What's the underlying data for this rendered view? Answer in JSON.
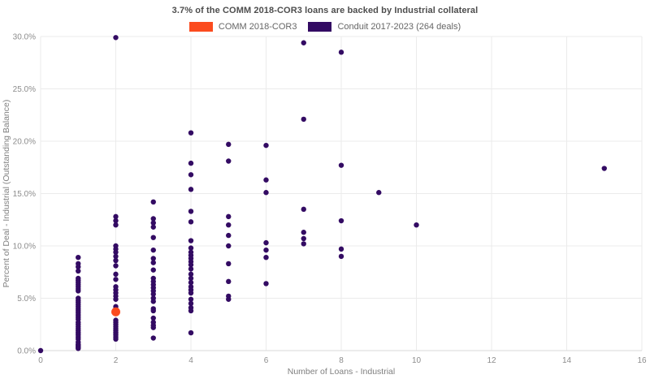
{
  "header": {
    "title": "3.7% of the COMM 2018-COR3 loans are backed by Industrial collateral"
  },
  "legend": {
    "items": [
      {
        "label": "COMM 2018-COR3",
        "color": "#fb4b1e"
      },
      {
        "label": "Conduit 2017-2023 (264 deals)",
        "color": "#330b63"
      }
    ]
  },
  "chart_data": {
    "type": "scatter",
    "title": "3.7% of the COMM 2018-COR3 loans are backed by Industrial collateral",
    "xlabel": "Number of Loans - Industrial",
    "ylabel": "Percent of Deal - Industrial (Outstanding Balance)",
    "xlim": [
      0,
      16
    ],
    "ylim": [
      0,
      30
    ],
    "grid": true,
    "legend_position": "top-center",
    "x_ticks": [
      {
        "v": 0,
        "label": "0"
      },
      {
        "v": 2,
        "label": "2"
      },
      {
        "v": 4,
        "label": "4"
      },
      {
        "v": 6,
        "label": "6"
      },
      {
        "v": 8,
        "label": "8"
      },
      {
        "v": 10,
        "label": "10"
      },
      {
        "v": 12,
        "label": "12"
      },
      {
        "v": 14,
        "label": "14"
      },
      {
        "v": 16,
        "label": "16"
      }
    ],
    "y_ticks": [
      {
        "v": 0,
        "label": "0.0%"
      },
      {
        "v": 5,
        "label": "5.0%"
      },
      {
        "v": 10,
        "label": "10.0%"
      },
      {
        "v": 15,
        "label": "15.0%"
      },
      {
        "v": 20,
        "label": "20.0%"
      },
      {
        "v": 25,
        "label": "25.0%"
      },
      {
        "v": 30,
        "label": "30.0%"
      }
    ],
    "series": [
      {
        "name": "Conduit 2017-2023 (264 deals)",
        "color": "#330b63",
        "marker_radius": 3.2,
        "points": [
          [
            0,
            0.0
          ],
          [
            1,
            8.9
          ],
          [
            1,
            8.3
          ],
          [
            1,
            8.0
          ],
          [
            1,
            7.6
          ],
          [
            1,
            6.9
          ],
          [
            1,
            6.7
          ],
          [
            1,
            6.5
          ],
          [
            1,
            6.3
          ],
          [
            1,
            6.1
          ],
          [
            1,
            5.9
          ],
          [
            1,
            5.7
          ],
          [
            1,
            5.0
          ],
          [
            1,
            4.8
          ],
          [
            1,
            4.6
          ],
          [
            1,
            4.4
          ],
          [
            1,
            4.2
          ],
          [
            1,
            4.0
          ],
          [
            1,
            3.8
          ],
          [
            1,
            3.6
          ],
          [
            1,
            3.4
          ],
          [
            1,
            3.2
          ],
          [
            1,
            3.0
          ],
          [
            1,
            2.7
          ],
          [
            1,
            2.5
          ],
          [
            1,
            2.3
          ],
          [
            1,
            2.1
          ],
          [
            1,
            1.9
          ],
          [
            1,
            1.7
          ],
          [
            1,
            1.5
          ],
          [
            1,
            1.3
          ],
          [
            1,
            1.1
          ],
          [
            1,
            0.8
          ],
          [
            1,
            0.6
          ],
          [
            1,
            0.5
          ],
          [
            1,
            0.4
          ],
          [
            1,
            0.3
          ],
          [
            1,
            0.2
          ],
          [
            2,
            29.9
          ],
          [
            2,
            12.8
          ],
          [
            2,
            12.4
          ],
          [
            2,
            12.0
          ],
          [
            2,
            10.0
          ],
          [
            2,
            9.7
          ],
          [
            2,
            9.4
          ],
          [
            2,
            9.0
          ],
          [
            2,
            8.6
          ],
          [
            2,
            8.1
          ],
          [
            2,
            7.3
          ],
          [
            2,
            6.8
          ],
          [
            2,
            6.1
          ],
          [
            2,
            5.8
          ],
          [
            2,
            5.5
          ],
          [
            2,
            5.2
          ],
          [
            2,
            4.9
          ],
          [
            2,
            4.2
          ],
          [
            2,
            2.9
          ],
          [
            2,
            2.7
          ],
          [
            2,
            2.5
          ],
          [
            2,
            2.3
          ],
          [
            2,
            2.1
          ],
          [
            2,
            1.9
          ],
          [
            2,
            1.7
          ],
          [
            2,
            1.5
          ],
          [
            2,
            1.3
          ],
          [
            2,
            1.1
          ],
          [
            3,
            14.2
          ],
          [
            3,
            12.6
          ],
          [
            3,
            12.2
          ],
          [
            3,
            11.8
          ],
          [
            3,
            10.8
          ],
          [
            3,
            9.6
          ],
          [
            3,
            8.8
          ],
          [
            3,
            8.4
          ],
          [
            3,
            7.7
          ],
          [
            3,
            6.9
          ],
          [
            3,
            6.6
          ],
          [
            3,
            6.3
          ],
          [
            3,
            6.0
          ],
          [
            3,
            5.7
          ],
          [
            3,
            5.4
          ],
          [
            3,
            5.0
          ],
          [
            3,
            4.7
          ],
          [
            3,
            4.0
          ],
          [
            3,
            3.8
          ],
          [
            3,
            3.1
          ],
          [
            3,
            2.7
          ],
          [
            3,
            2.4
          ],
          [
            3,
            2.2
          ],
          [
            3,
            1.2
          ],
          [
            4,
            20.8
          ],
          [
            4,
            17.9
          ],
          [
            4,
            16.8
          ],
          [
            4,
            15.4
          ],
          [
            4,
            13.3
          ],
          [
            4,
            12.3
          ],
          [
            4,
            10.5
          ],
          [
            4,
            9.8
          ],
          [
            4,
            9.4
          ],
          [
            4,
            9.1
          ],
          [
            4,
            8.8
          ],
          [
            4,
            8.5
          ],
          [
            4,
            8.2
          ],
          [
            4,
            7.8
          ],
          [
            4,
            7.3
          ],
          [
            4,
            6.9
          ],
          [
            4,
            6.5
          ],
          [
            4,
            6.1
          ],
          [
            4,
            5.8
          ],
          [
            4,
            5.5
          ],
          [
            4,
            4.9
          ],
          [
            4,
            4.5
          ],
          [
            4,
            4.1
          ],
          [
            4,
            3.8
          ],
          [
            4,
            1.7
          ],
          [
            5,
            19.7
          ],
          [
            5,
            18.1
          ],
          [
            5,
            12.8
          ],
          [
            5,
            12.0
          ],
          [
            5,
            11.0
          ],
          [
            5,
            10.0
          ],
          [
            5,
            8.3
          ],
          [
            5,
            6.6
          ],
          [
            5,
            5.2
          ],
          [
            5,
            4.9
          ],
          [
            6,
            19.6
          ],
          [
            6,
            16.3
          ],
          [
            6,
            15.1
          ],
          [
            6,
            10.3
          ],
          [
            6,
            9.6
          ],
          [
            6,
            8.9
          ],
          [
            6,
            6.4
          ],
          [
            7,
            29.4
          ],
          [
            7,
            22.1
          ],
          [
            7,
            13.5
          ],
          [
            7,
            11.3
          ],
          [
            7,
            10.7
          ],
          [
            7,
            10.2
          ],
          [
            8,
            28.5
          ],
          [
            8,
            17.7
          ],
          [
            8,
            12.4
          ],
          [
            8,
            9.7
          ],
          [
            8,
            9.0
          ],
          [
            9,
            15.1
          ],
          [
            10,
            12.0
          ],
          [
            15,
            17.4
          ]
        ]
      },
      {
        "name": "COMM 2018-COR3",
        "color": "#fb4b1e",
        "marker_radius": 5.5,
        "points": [
          [
            2,
            3.7
          ]
        ]
      }
    ]
  }
}
